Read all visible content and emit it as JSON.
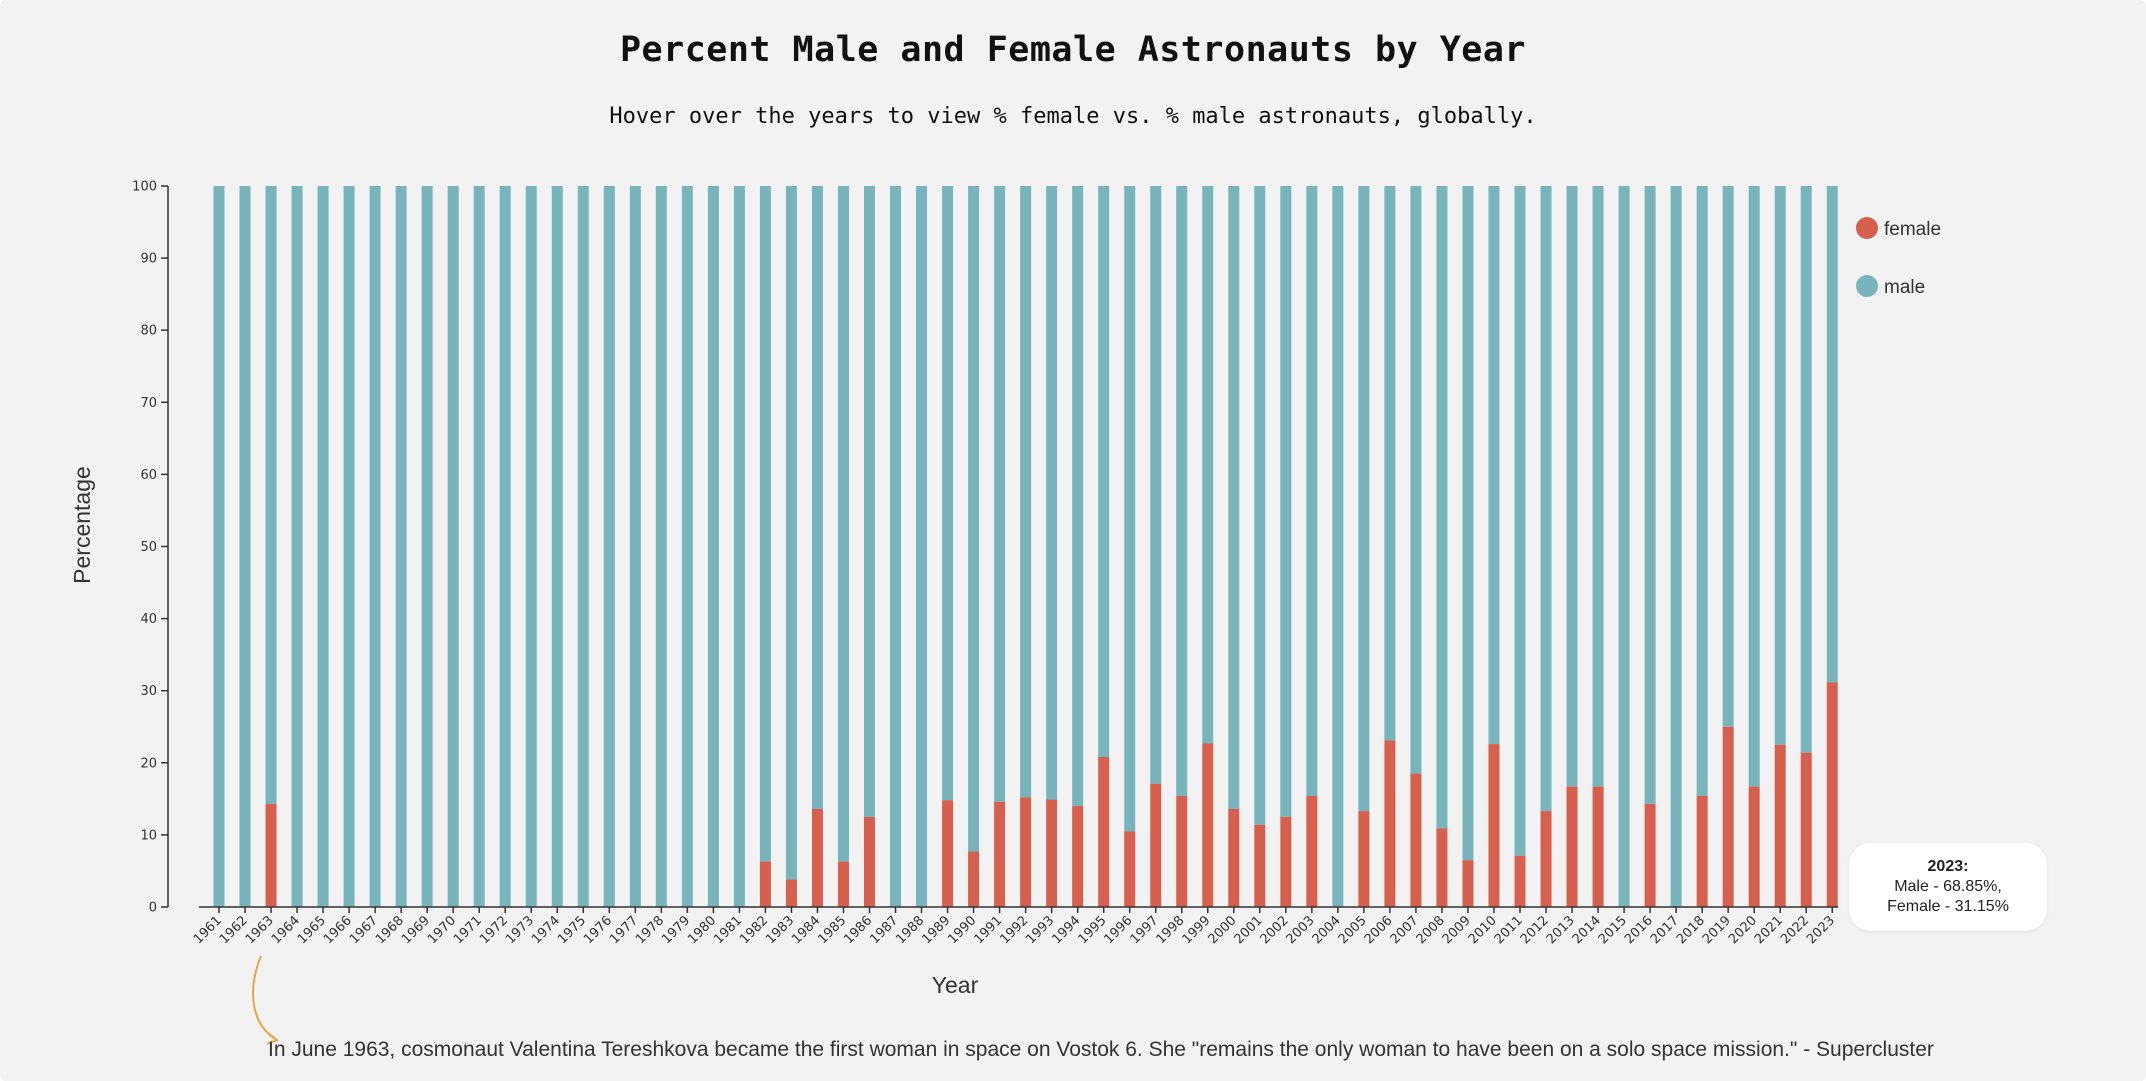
{
  "chart_data": {
    "type": "bar",
    "stacked": true,
    "title": "Percent Male and Female Astronauts by Year",
    "subtitle": "Hover over the years to view % female vs. % male astronauts, globally.",
    "xlabel": "Year",
    "ylabel": "Percentage",
    "ylim": [
      0,
      100
    ],
    "yticks": [
      0,
      10,
      20,
      30,
      40,
      50,
      60,
      70,
      80,
      90,
      100
    ],
    "categories": [
      "1961",
      "1962",
      "1963",
      "1964",
      "1965",
      "1966",
      "1967",
      "1968",
      "1969",
      "1970",
      "1971",
      "1972",
      "1973",
      "1974",
      "1975",
      "1976",
      "1977",
      "1978",
      "1979",
      "1980",
      "1981",
      "1982",
      "1983",
      "1984",
      "1985",
      "1986",
      "1987",
      "1988",
      "1989",
      "1990",
      "1991",
      "1992",
      "1993",
      "1994",
      "1995",
      "1996",
      "1997",
      "1998",
      "1999",
      "2000",
      "2001",
      "2002",
      "2003",
      "2004",
      "2005",
      "2006",
      "2007",
      "2008",
      "2009",
      "2010",
      "2011",
      "2012",
      "2013",
      "2014",
      "2015",
      "2016",
      "2017",
      "2018",
      "2019",
      "2020",
      "2021",
      "2022",
      "2023"
    ],
    "series": [
      {
        "name": "female",
        "color": "#d6604d",
        "values": [
          0,
          0,
          14.3,
          0,
          0,
          0,
          0,
          0,
          0,
          0,
          0,
          0,
          0,
          0,
          0,
          0,
          0,
          0,
          0,
          0,
          0,
          6.3,
          3.8,
          13.6,
          6.3,
          12.5,
          0,
          0,
          14.8,
          7.7,
          14.6,
          15.2,
          14.9,
          14.0,
          20.8,
          10.5,
          17.1,
          15.4,
          22.7,
          13.6,
          11.4,
          12.5,
          15.4,
          0,
          13.3,
          23.1,
          18.5,
          10.9,
          6.5,
          22.6,
          7.1,
          13.3,
          16.7,
          16.7,
          0,
          14.3,
          0,
          15.4,
          25.0,
          16.7,
          22.5,
          21.4,
          31.15
        ]
      },
      {
        "name": "male",
        "color": "#78b4bc",
        "values": [
          100,
          100,
          85.7,
          100,
          100,
          100,
          100,
          100,
          100,
          100,
          100,
          100,
          100,
          100,
          100,
          100,
          100,
          100,
          100,
          100,
          100,
          93.7,
          96.2,
          86.4,
          93.7,
          87.5,
          100,
          100,
          85.2,
          92.3,
          85.4,
          84.8,
          85.1,
          86.0,
          79.2,
          89.5,
          82.9,
          84.6,
          77.3,
          86.4,
          88.6,
          87.5,
          84.6,
          100,
          86.7,
          76.9,
          81.5,
          89.1,
          93.5,
          77.4,
          92.9,
          86.7,
          83.3,
          83.3,
          100,
          85.7,
          100,
          84.6,
          75.0,
          83.3,
          77.5,
          78.6,
          68.85
        ]
      }
    ],
    "legend": {
      "placement": "top-right",
      "items": [
        {
          "label": "female",
          "color": "#d6604d"
        },
        {
          "label": "male",
          "color": "#78b4bc"
        }
      ]
    },
    "tooltip": {
      "year": "2023:",
      "male": "Male - 68.85%,",
      "female": "Female - 31.15%"
    },
    "annotation": {
      "year": "1963",
      "text": "In June 1963, cosmonaut Valentina Tereshkova became the first woman in space on Vostok 6. She \"remains the only woman to have been on a solo space mission.\" - Supercluster",
      "arrow_color": "#e8a640"
    }
  }
}
